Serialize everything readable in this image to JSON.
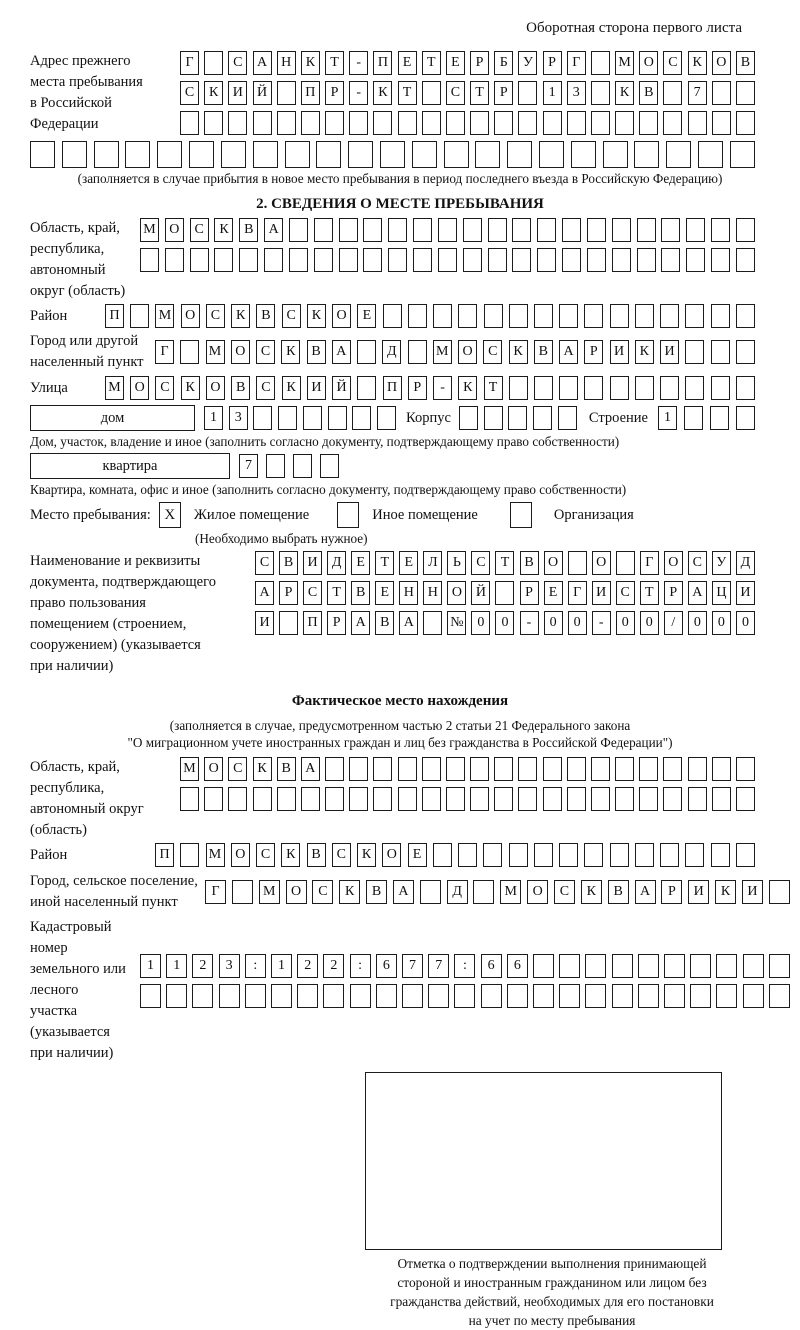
{
  "ink_color": "#1c1c1c",
  "page_title": "Оборотная сторона первого листа",
  "prev_address": {
    "label_lines": [
      "Адрес прежнего",
      "места пребывания",
      "в Российской",
      "Федерации"
    ],
    "rows": [
      [
        "Г",
        "",
        "С",
        "А",
        "Н",
        "К",
        "Т",
        "-",
        "П",
        "Е",
        "Т",
        "Е",
        "Р",
        "Б",
        "У",
        "Р",
        "Г",
        "",
        "М",
        "О",
        "С",
        "К",
        "О",
        "В"
      ],
      [
        "С",
        "К",
        "И",
        "Й",
        "",
        "П",
        "Р",
        "-",
        "К",
        "Т",
        "",
        "С",
        "Т",
        "Р",
        "",
        "1",
        "3",
        "",
        "К",
        "В",
        "",
        "7",
        "",
        ""
      ],
      [
        "",
        "",
        "",
        "",
        "",
        "",
        "",
        "",
        "",
        "",
        "",
        "",
        "",
        "",
        "",
        "",
        "",
        "",
        "",
        "",
        "",
        "",
        "",
        ""
      ]
    ],
    "row4": [
      "",
      "",
      "",
      "",
      "",
      "",
      "",
      "",
      "",
      "",
      "",
      "",
      "",
      "",
      "",
      "",
      "",
      "",
      "",
      "",
      "",
      "",
      ""
    ],
    "note": "(заполняется в случае прибытия в новое место пребывания в период последнего въезда в Российскую Федерацию)"
  },
  "section2": {
    "title": "2. СВЕДЕНИЯ О МЕСТЕ ПРЕБЫВАНИЯ",
    "region": {
      "label_lines": [
        "Область, край,",
        "республика,",
        "автономный",
        "округ (область)"
      ],
      "rows": [
        [
          "М",
          "О",
          "С",
          "К",
          "В",
          "А",
          "",
          "",
          "",
          "",
          "",
          "",
          "",
          "",
          "",
          "",
          "",
          "",
          "",
          "",
          "",
          "",
          "",
          "",
          ""
        ],
        [
          "",
          "",
          "",
          "",
          "",
          "",
          "",
          "",
          "",
          "",
          "",
          "",
          "",
          "",
          "",
          "",
          "",
          "",
          "",
          "",
          "",
          "",
          "",
          "",
          ""
        ]
      ]
    },
    "district": {
      "label": "Район",
      "row": [
        "П",
        "",
        "М",
        "О",
        "С",
        "К",
        "В",
        "С",
        "К",
        "О",
        "Е",
        "",
        "",
        "",
        "",
        "",
        "",
        "",
        "",
        "",
        "",
        "",
        "",
        "",
        "",
        ""
      ]
    },
    "city": {
      "label_lines": [
        "Город или другой",
        "населенный пункт"
      ],
      "row": [
        "Г",
        "",
        "М",
        "О",
        "С",
        "К",
        "В",
        "А",
        "",
        "Д",
        "",
        "М",
        "О",
        "С",
        "К",
        "В",
        "А",
        "Р",
        "И",
        "К",
        "И",
        "",
        "",
        ""
      ]
    },
    "street": {
      "label": "Улица",
      "row": [
        "М",
        "О",
        "С",
        "К",
        "О",
        "В",
        "С",
        "К",
        "И",
        "Й",
        "",
        "П",
        "Р",
        "-",
        "К",
        "Т",
        "",
        "",
        "",
        "",
        "",
        "",
        "",
        "",
        "",
        ""
      ]
    },
    "house": {
      "box_label": "дом",
      "cells": [
        "1",
        "3",
        "",
        "",
        "",
        "",
        "",
        ""
      ],
      "korpus_label": "Корпус",
      "korpus_cells": [
        "",
        "",
        "",
        "",
        ""
      ],
      "stroenie_label": "Строение",
      "stroenie_cells": [
        "1",
        "",
        "",
        ""
      ]
    },
    "house_note": "Дом, участок, владение и иное (заполнить согласно документу, подтверждающему право собственности)",
    "apartment": {
      "box_label": "квартира",
      "cells": [
        "7",
        "",
        "",
        ""
      ]
    },
    "apartment_note": "Квартира, комната, офис и иное (заполнить согласно документу, подтверждающему право собственности)",
    "stay_type": {
      "label": "Место пребывания:",
      "options": [
        {
          "label": "Жилое помещение",
          "mark": "X"
        },
        {
          "label": "Иное помещение",
          "mark": ""
        },
        {
          "label": "Организация",
          "mark": ""
        }
      ],
      "choose_note": "(Необходимо выбрать нужное)"
    },
    "doc": {
      "label_lines": [
        "Наименование и реквизиты",
        "документа, подтверждающего",
        "право пользования",
        "помещением (строением,",
        "сооружением) (указывается",
        "при наличии)"
      ],
      "rows": [
        [
          "С",
          "В",
          "И",
          "Д",
          "Е",
          "Т",
          "Е",
          "Л",
          "Ь",
          "С",
          "Т",
          "В",
          "О",
          "",
          "О",
          "",
          "Г",
          "О",
          "С",
          "У",
          "Д"
        ],
        [
          "А",
          "Р",
          "С",
          "Т",
          "В",
          "Е",
          "Н",
          "Н",
          "О",
          "Й",
          "",
          "Р",
          "Е",
          "Г",
          "И",
          "С",
          "Т",
          "Р",
          "А",
          "Ц",
          "И"
        ],
        [
          "И",
          "",
          "П",
          "Р",
          "А",
          "В",
          "А",
          "",
          "№",
          "0",
          "0",
          "-",
          "0",
          "0",
          "-",
          "0",
          "0",
          "/",
          "0",
          "0",
          "0"
        ]
      ]
    }
  },
  "actual_location": {
    "title": "Фактическое место нахождения",
    "note_lines": [
      "(заполняется в случае, предусмотренном частью 2 статьи 21 Федерального закона",
      "\"О миграционном учете иностранных граждан и лиц без гражданства в Российской Федерации\")"
    ],
    "region": {
      "label_lines": [
        "Область, край,",
        "республика,",
        "автономный округ",
        "(область)"
      ],
      "rows": [
        [
          "М",
          "О",
          "С",
          "К",
          "В",
          "А",
          "",
          "",
          "",
          "",
          "",
          "",
          "",
          "",
          "",
          "",
          "",
          "",
          "",
          "",
          "",
          "",
          "",
          ""
        ],
        [
          "",
          "",
          "",
          "",
          "",
          "",
          "",
          "",
          "",
          "",
          "",
          "",
          "",
          "",
          "",
          "",
          "",
          "",
          "",
          "",
          "",
          "",
          "",
          ""
        ]
      ]
    },
    "district": {
      "label": "Район",
      "row": [
        "П",
        "",
        "М",
        "О",
        "С",
        "К",
        "В",
        "С",
        "К",
        "О",
        "Е",
        "",
        "",
        "",
        "",
        "",
        "",
        "",
        "",
        "",
        "",
        "",
        "",
        ""
      ]
    },
    "city": {
      "label_lines": [
        "Город, сельское поселение,",
        "иной населенный пункт"
      ],
      "row": [
        "Г",
        "",
        "М",
        "О",
        "С",
        "К",
        "В",
        "А",
        "",
        "Д",
        "",
        "М",
        "О",
        "С",
        "К",
        "В",
        "А",
        "Р",
        "И",
        "К",
        "И",
        ""
      ]
    },
    "cadastral": {
      "label_lines": [
        "Кадастровый номер",
        "земельного или лесного",
        "участка (указывается",
        "при наличии)"
      ],
      "rows": [
        [
          "1",
          "1",
          "2",
          "3",
          ":",
          "1",
          "2",
          "2",
          ":",
          "6",
          "7",
          "7",
          ":",
          "6",
          "6",
          "",
          "",
          "",
          "",
          "",
          "",
          "",
          "",
          "",
          ""
        ],
        [
          "",
          "",
          "",
          "",
          "",
          "",
          "",
          "",
          "",
          "",
          "",
          "",
          "",
          "",
          "",
          "",
          "",
          "",
          "",
          "",
          "",
          "",
          "",
          "",
          ""
        ]
      ]
    },
    "stamp_note_lines": [
      "Отметка о подтверждении выполнения принимающей",
      "стороной и иностранным гражданином или лицом без",
      "гражданства действий, необходимых для его постановки",
      "на учет по месту пребывания"
    ]
  }
}
